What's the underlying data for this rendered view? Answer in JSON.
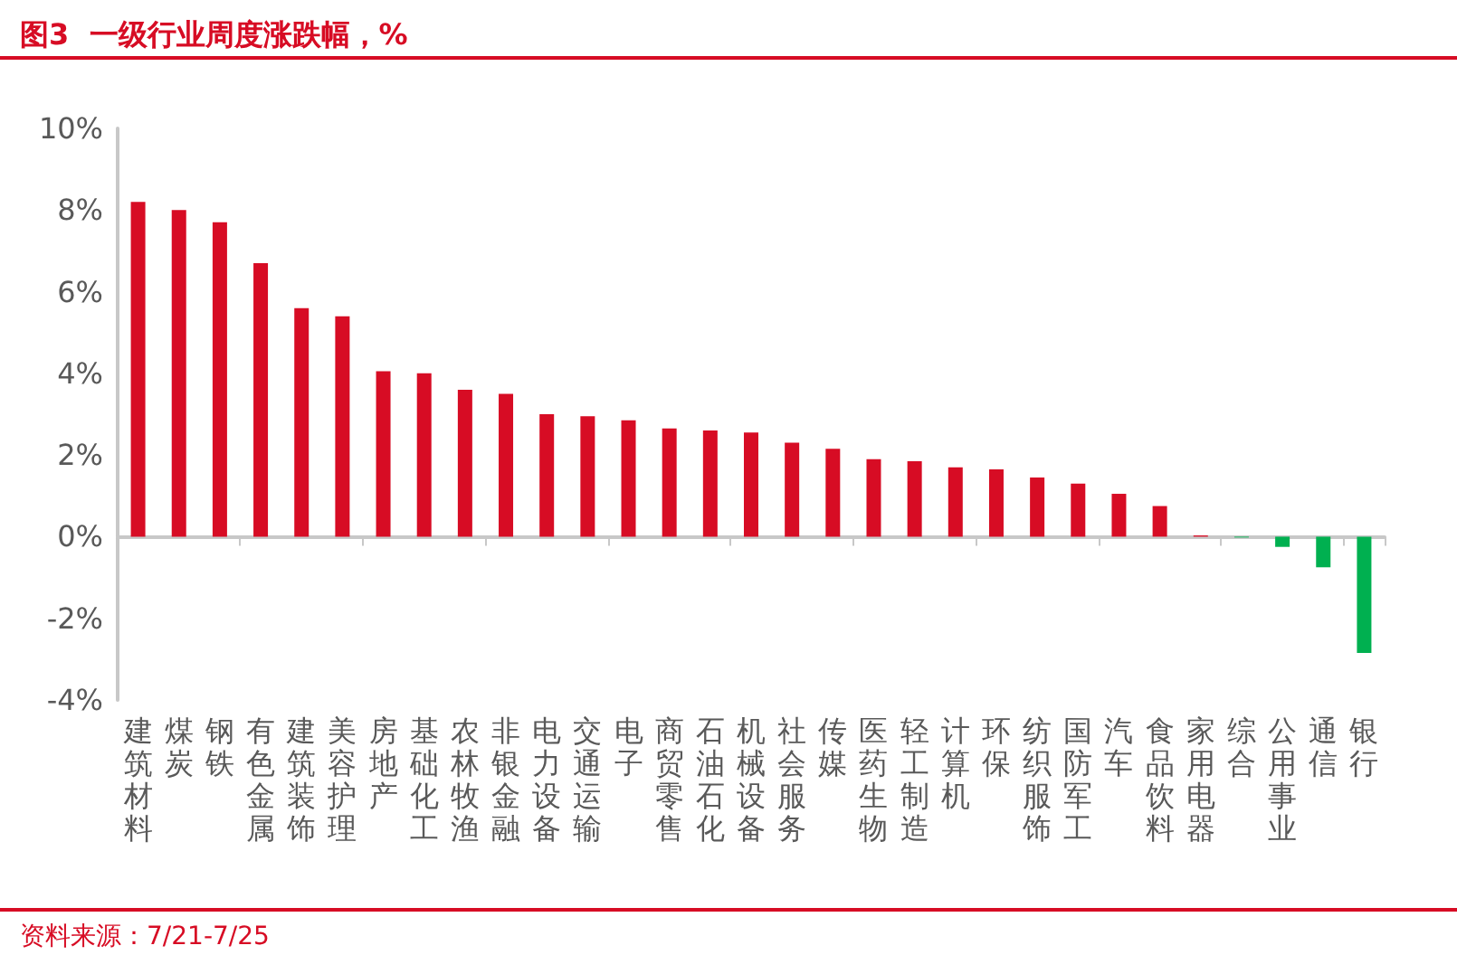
{
  "chart_data": {
    "type": "bar",
    "title": "图3  一级行业周度涨跌幅，%",
    "categories": [
      "建筑材料",
      "煤炭",
      "钢铁",
      "有色金属",
      "建筑装饰",
      "美容护理",
      "房地产",
      "基础化工",
      "农林牧渔",
      "非银金融",
      "电力设备",
      "交通运输",
      "电子",
      "商贸零售",
      "石油石化",
      "机械设备",
      "社会服务",
      "传媒",
      "医药生物",
      "轻工制造",
      "计算机",
      "环保",
      "纺织服饰",
      "国防军工",
      "汽车",
      "食品饮料",
      "家用电器",
      "综合",
      "公用事业",
      "通信",
      "银行"
    ],
    "values": [
      8.2,
      8.0,
      7.7,
      6.7,
      5.6,
      5.4,
      4.05,
      4.0,
      3.6,
      3.5,
      3.0,
      2.95,
      2.85,
      2.65,
      2.6,
      2.55,
      2.3,
      2.15,
      1.9,
      1.85,
      1.7,
      1.65,
      1.45,
      1.3,
      1.05,
      0.75,
      0.03,
      -0.02,
      -0.25,
      -0.75,
      -2.85
    ],
    "colors": [
      "#d70c24",
      "#d70c24",
      "#d70c24",
      "#d70c24",
      "#d70c24",
      "#d70c24",
      "#d70c24",
      "#d70c24",
      "#d70c24",
      "#d70c24",
      "#d70c24",
      "#d70c24",
      "#d70c24",
      "#d70c24",
      "#d70c24",
      "#d70c24",
      "#d70c24",
      "#d70c24",
      "#d70c24",
      "#d70c24",
      "#d70c24",
      "#d70c24",
      "#d70c24",
      "#d70c24",
      "#d70c24",
      "#d70c24",
      "#d70c24",
      "#00b050",
      "#00b050",
      "#00b050",
      "#00b050"
    ],
    "ylim": [
      -4,
      10
    ],
    "yticks": [
      {
        "value": -4,
        "label": "-4%"
      },
      {
        "value": -2,
        "label": "-2%"
      },
      {
        "value": 0,
        "label": "0%"
      },
      {
        "value": 2,
        "label": "2%"
      },
      {
        "value": 4,
        "label": "4%"
      },
      {
        "value": 6,
        "label": "6%"
      },
      {
        "value": 8,
        "label": "8%"
      },
      {
        "value": 10,
        "label": "10%"
      }
    ],
    "annotations": [
      "资料来源：7/21-7/25"
    ]
  }
}
